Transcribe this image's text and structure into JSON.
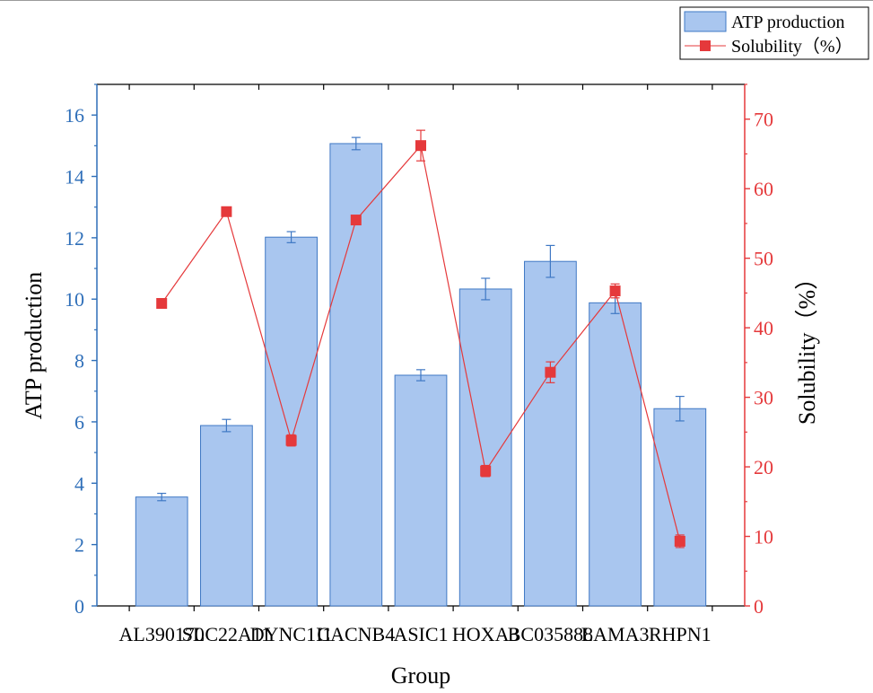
{
  "chart_data": {
    "type": "bar",
    "title": "",
    "xlabel": "Group",
    "ylabel": "ATP production",
    "y2label": "Solubility（%）",
    "categories": [
      "AL390170",
      "SLC22A11",
      "DYNC1I1",
      "CACNB4",
      "ASIC1",
      "HOXA3",
      "BC035888",
      "LAMA3",
      "RHPN1"
    ],
    "ylim": [
      0,
      17
    ],
    "y2lim": [
      0,
      75
    ],
    "yticks": [
      0,
      2,
      4,
      6,
      8,
      10,
      12,
      14,
      16
    ],
    "y2ticks": [
      0,
      10,
      20,
      30,
      40,
      50,
      60,
      70
    ],
    "series": [
      {
        "name": "ATP production",
        "kind": "bar",
        "axis": "left",
        "values": [
          3.55,
          5.88,
          12.02,
          15.07,
          7.52,
          10.33,
          11.23,
          9.88,
          6.43
        ],
        "errors": [
          0.12,
          0.2,
          0.18,
          0.2,
          0.18,
          0.35,
          0.52,
          0.35,
          0.4
        ],
        "color": "#a9c6ef",
        "edge_color": "#3f78c4"
      },
      {
        "name": "Solubility（%）",
        "kind": "line",
        "axis": "right",
        "values": [
          43.5,
          56.7,
          23.8,
          55.5,
          66.2,
          19.4,
          33.6,
          45.3,
          9.3
        ],
        "errors": [
          0,
          0,
          0.8,
          0,
          2.2,
          0.8,
          1.5,
          1.0,
          0.9
        ],
        "color": "#e5393b"
      }
    ],
    "legend": {
      "position": "top-right",
      "entries": [
        "ATP production",
        "Solubility（%）"
      ]
    },
    "colors": {
      "left_axis": "#2f6fb9",
      "right_axis": "#e5393b",
      "frame": "#000000"
    }
  }
}
